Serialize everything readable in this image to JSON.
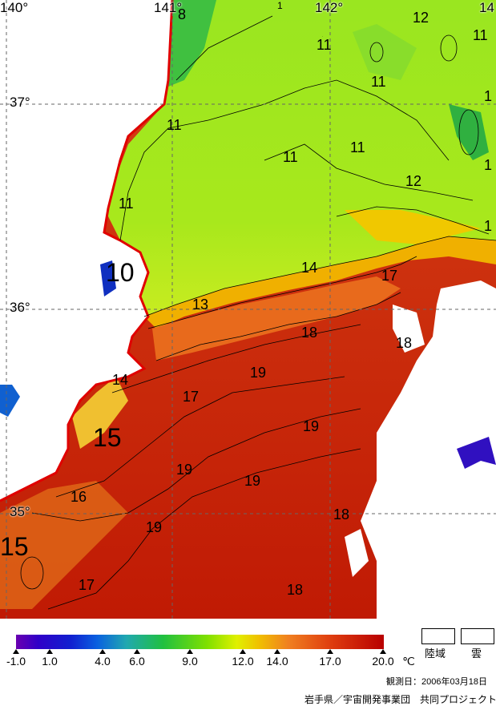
{
  "map": {
    "longitudes": [
      "140°",
      "141°",
      "142°",
      "14"
    ],
    "latitudes": [
      "37°",
      "36°",
      "35°"
    ],
    "contour_labels": {
      "c1": "8",
      "c2": "11",
      "c3": "11",
      "c4": "11",
      "c5": "12",
      "c6": "11",
      "c7": "11",
      "c8": "11",
      "c9": "11",
      "c10": "12",
      "c11": "11",
      "c12": "10",
      "c13": "14",
      "c14": "13",
      "c15": "17",
      "c16": "18",
      "c17": "18",
      "c18": "14",
      "c19": "19",
      "c20": "17",
      "c21": "15",
      "c22": "19",
      "c23": "19",
      "c24": "19",
      "c25": "16",
      "c26": "18",
      "c27": "19",
      "c28": "15",
      "c29": "17",
      "c30": "18",
      "c31": "1",
      "c32": "1",
      "c33": "1",
      "c34": "1"
    }
  },
  "legend": {
    "ticks": [
      "-1.0",
      "1.0",
      "4.0",
      "6.0",
      "9.0",
      "12.0",
      "14.0",
      "17.0",
      "20.0"
    ],
    "unit": "℃",
    "land_label": "陸域",
    "cloud_label": "雲",
    "observation_date": "観測日：2006年03月18日",
    "credit": "岩手県／宇宙開発事業団　共同プロジェクト"
  }
}
